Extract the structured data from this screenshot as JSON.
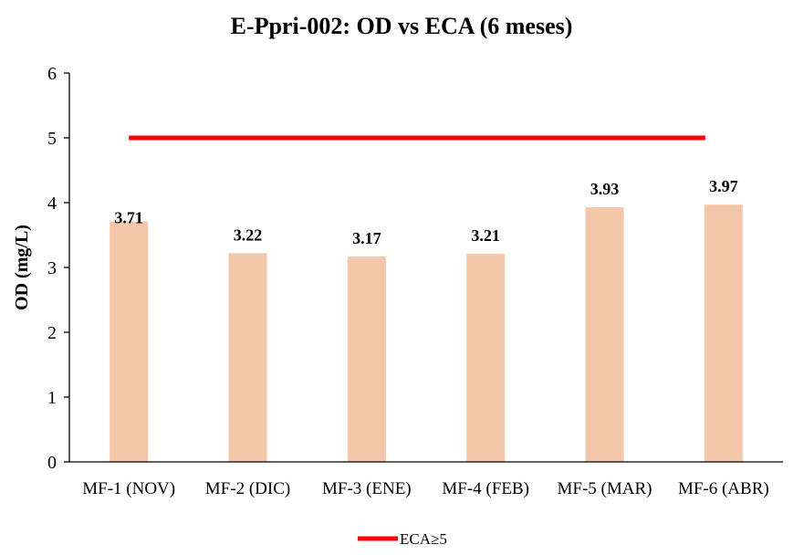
{
  "chart_data": {
    "type": "bar",
    "title": "E-Ppri-002: OD vs ECA (6 meses)",
    "xlabel": "",
    "ylabel": "OD (mg/L)",
    "ylim": [
      0,
      6
    ],
    "yticks": [
      0,
      1,
      2,
      3,
      4,
      5,
      6
    ],
    "categories": [
      "MF-1 (NOV)",
      "MF-2 (DIC)",
      "MF-3 (ENE)",
      "MF-4 (FEB)",
      "MF-5 (MAR)",
      "MF-6 (ABR)"
    ],
    "values": [
      3.71,
      3.22,
      3.17,
      3.21,
      3.93,
      3.97
    ],
    "data_labels": [
      "3.71",
      "3.22",
      "3.17",
      "3.21",
      "3.93",
      "3.97"
    ],
    "bar_color": "#F4C6AA",
    "reference_line": {
      "name": "ECA≥5",
      "value": 5,
      "color": "#FF0000"
    },
    "legend": {
      "position": "bottom",
      "entries": [
        "ECA≥5"
      ]
    },
    "grid": false
  }
}
